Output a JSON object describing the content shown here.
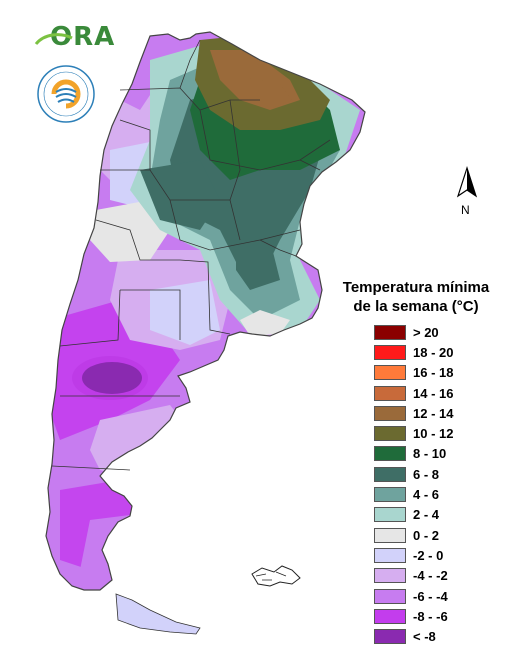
{
  "header": {
    "logo_text": "ORA",
    "seal_icon": "smn-argentina-seal-icon",
    "seal_colors": [
      "#f2a32a",
      "#2c7fb8"
    ]
  },
  "north_arrow": {
    "label": "N",
    "icon": "north-arrow-icon"
  },
  "legend": {
    "title_line1": "Temperatura mínima",
    "title_line2": "de la semana (°C)",
    "items": [
      {
        "label": "> 20",
        "color": "#8b0000"
      },
      {
        "label": "18 - 20",
        "color": "#ff1a1a"
      },
      {
        "label": "16 - 18",
        "color": "#ff7a3a"
      },
      {
        "label": "14 - 16",
        "color": "#c86a3a"
      },
      {
        "label": "12 - 14",
        "color": "#9a6a3a"
      },
      {
        "label": "10 - 12",
        "color": "#6b6a30"
      },
      {
        "label": "8 - 10",
        "color": "#1f6b3a"
      },
      {
        "label": "6 - 8",
        "color": "#3f6e66"
      },
      {
        "label": "4 - 6",
        "color": "#6fa39e"
      },
      {
        "label": "2 - 4",
        "color": "#a9d6cf"
      },
      {
        "label": "0 - 2",
        "color": "#e6e6e6"
      },
      {
        "label": "-2 - 0",
        "color": "#d2d2fa"
      },
      {
        "label": "-4 - -2",
        "color": "#d6aef0"
      },
      {
        "label": "-6 - -4",
        "color": "#c77cf0"
      },
      {
        "label": "-8 - -6",
        "color": "#c33ded"
      },
      {
        "label": "< -8",
        "color": "#8a2ab0"
      }
    ]
  }
}
